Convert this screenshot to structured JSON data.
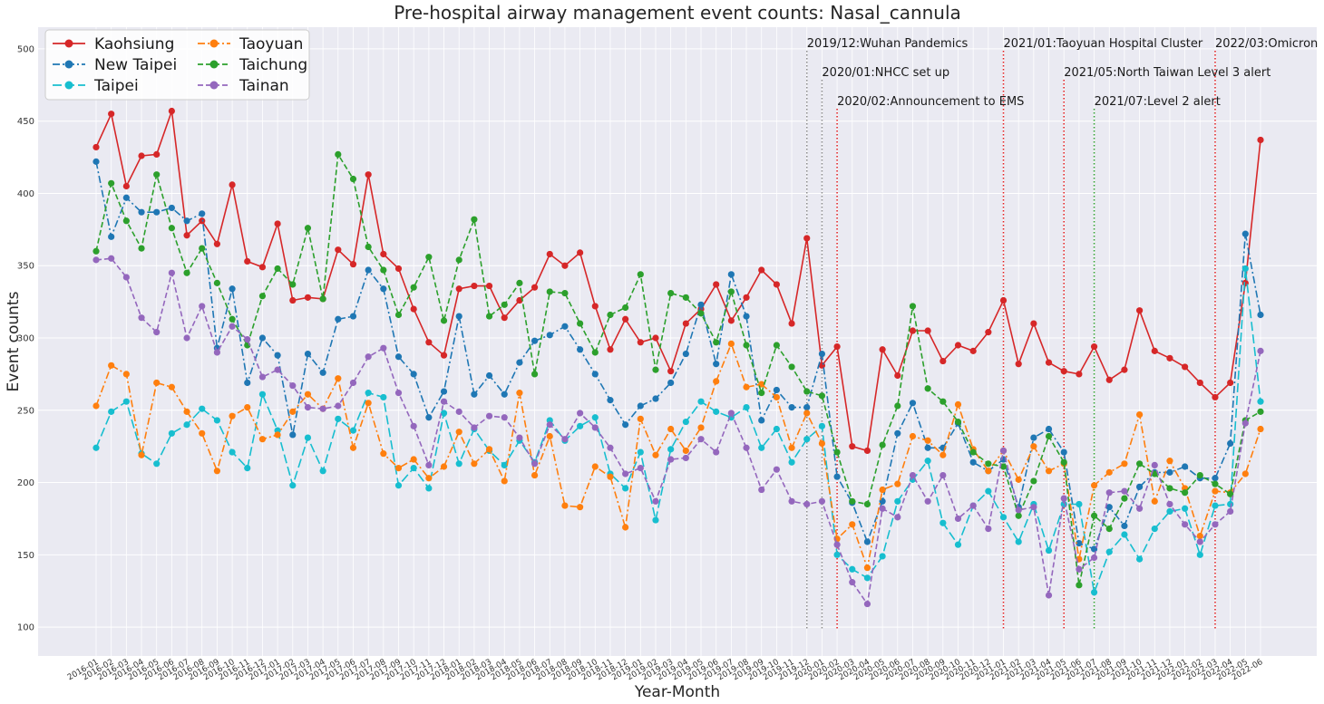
{
  "chart_data": {
    "type": "line",
    "title": "Pre-hospital airway management event counts: Nasal_cannula",
    "xlabel": "Year-Month",
    "ylabel": "Event counts",
    "ylim": [
      80,
      515
    ],
    "yticks": [
      100,
      150,
      200,
      250,
      300,
      350,
      400,
      450,
      500
    ],
    "grid": true,
    "legend_position": "top-left",
    "x": [
      "2016-01",
      "2016-02",
      "2016-03",
      "2016-04",
      "2016-05",
      "2016-06",
      "2016-07",
      "2016-08",
      "2016-09",
      "2016-10",
      "2016-11",
      "2016-12",
      "2017-01",
      "2017-02",
      "2017-03",
      "2017-04",
      "2017-05",
      "2017-06",
      "2017-07",
      "2017-08",
      "2017-09",
      "2017-10",
      "2017-11",
      "2017-12",
      "2018-01",
      "2018-02",
      "2018-03",
      "2018-04",
      "2018-05",
      "2018-06",
      "2018-07",
      "2018-08",
      "2018-09",
      "2018-10",
      "2018-11",
      "2018-12",
      "2019-01",
      "2019-02",
      "2019-03",
      "2019-04",
      "2019-05",
      "2019-06",
      "2019-07",
      "2019-08",
      "2019-09",
      "2019-10",
      "2019-11",
      "2019-12",
      "2020-01",
      "2020-02",
      "2020-03",
      "2020-04",
      "2020-05",
      "2020-06",
      "2020-07",
      "2020-08",
      "2020-09",
      "2020-10",
      "2020-11",
      "2020-12",
      "2021-01",
      "2021-02",
      "2021-03",
      "2021-04",
      "2021-05",
      "2021-06",
      "2021-07",
      "2021-08",
      "2021-09",
      "2021-10",
      "2021-11",
      "2021-12",
      "2022-01",
      "2022-02",
      "2022-03",
      "2022-04",
      "2022-05",
      "2022-06"
    ],
    "series": [
      {
        "name": "Kaohsiung",
        "color": "#d62728",
        "dash": "solid",
        "values": [
          432,
          455,
          405,
          426,
          427,
          457,
          371,
          381,
          365,
          406,
          353,
          349,
          379,
          326,
          328,
          327,
          361,
          351,
          413,
          358,
          348,
          320,
          297,
          288,
          334,
          336,
          336,
          314,
          326,
          335,
          358,
          350,
          359,
          322,
          292,
          313,
          297,
          300,
          277,
          310,
          320,
          337,
          312,
          328,
          347,
          337,
          310,
          369,
          281,
          294,
          225,
          222,
          292,
          274,
          305,
          305,
          284,
          295,
          291,
          304,
          326,
          282,
          310,
          283,
          277,
          275,
          294,
          271,
          278,
          319,
          291,
          286,
          280,
          269,
          259,
          269,
          338,
          437
        ]
      },
      {
        "name": "New Taipei",
        "color": "#1f77b4",
        "dash": "dashdot",
        "values": [
          422,
          370,
          397,
          387,
          387,
          390,
          381,
          386,
          293,
          334,
          269,
          300,
          288,
          233,
          289,
          276,
          313,
          315,
          347,
          334,
          287,
          275,
          245,
          263,
          315,
          261,
          274,
          261,
          283,
          298,
          302,
          308,
          292,
          275,
          257,
          240,
          253,
          258,
          269,
          289,
          323,
          282,
          344,
          315,
          243,
          264,
          252,
          252,
          289,
          204,
          186,
          159,
          187,
          234,
          255,
          224,
          224,
          241,
          214,
          208,
          216,
          183,
          231,
          237,
          221,
          158,
          154,
          183,
          170,
          197,
          207,
          207,
          211,
          203,
          203,
          227,
          372,
          316
        ]
      },
      {
        "name": "Taipei",
        "color": "#17becf",
        "dash": "longdash",
        "values": [
          224,
          249,
          256,
          220,
          213,
          234,
          240,
          251,
          243,
          221,
          210,
          261,
          236,
          198,
          231,
          208,
          244,
          236,
          262,
          259,
          198,
          210,
          196,
          248,
          213,
          237,
          222,
          212,
          229,
          214,
          243,
          229,
          239,
          245,
          206,
          196,
          221,
          174,
          223,
          242,
          256,
          249,
          245,
          252,
          224,
          237,
          214,
          230,
          239,
          150,
          140,
          134,
          149,
          187,
          202,
          215,
          172,
          157,
          184,
          194,
          176,
          159,
          185,
          153,
          185,
          185,
          124,
          152,
          164,
          147,
          168,
          180,
          182,
          150,
          184,
          185,
          348,
          256
        ]
      },
      {
        "name": "Taoyuan",
        "color": "#ff7f0e",
        "dash": "dashdot",
        "values": [
          253,
          281,
          275,
          219,
          269,
          266,
          249,
          234,
          208,
          246,
          252,
          230,
          233,
          249,
          261,
          251,
          272,
          224,
          255,
          220,
          210,
          216,
          203,
          211,
          235,
          213,
          223,
          201,
          262,
          205,
          232,
          184,
          183,
          211,
          204,
          169,
          244,
          219,
          237,
          222,
          238,
          270,
          296,
          266,
          268,
          259,
          224,
          248,
          227,
          161,
          171,
          141,
          195,
          199,
          232,
          229,
          219,
          254,
          223,
          208,
          222,
          202,
          225,
          208,
          213,
          147,
          198,
          207,
          213,
          247,
          187,
          215,
          196,
          163,
          194,
          193,
          206,
          237
        ]
      },
      {
        "name": "Taichung",
        "color": "#2ca02c",
        "dash": "dashed",
        "values": [
          360,
          407,
          381,
          362,
          413,
          376,
          345,
          362,
          338,
          313,
          295,
          329,
          348,
          337,
          376,
          327,
          427,
          410,
          363,
          347,
          316,
          335,
          356,
          312,
          354,
          382,
          315,
          323,
          338,
          275,
          332,
          331,
          310,
          290,
          316,
          321,
          344,
          278,
          331,
          328,
          317,
          297,
          332,
          295,
          262,
          295,
          280,
          263,
          260,
          221,
          187,
          185,
          226,
          253,
          322,
          265,
          256,
          242,
          221,
          213,
          211,
          177,
          201,
          232,
          214,
          129,
          177,
          168,
          189,
          213,
          206,
          196,
          193,
          205,
          199,
          192,
          243,
          249
        ]
      },
      {
        "name": "Tainan",
        "color": "#9467bd",
        "dash": "dashed",
        "values": [
          354,
          355,
          342,
          314,
          304,
          345,
          300,
          322,
          290,
          308,
          299,
          273,
          278,
          267,
          252,
          251,
          253,
          269,
          287,
          293,
          262,
          239,
          212,
          256,
          249,
          238,
          246,
          245,
          231,
          213,
          240,
          230,
          248,
          238,
          224,
          206,
          210,
          187,
          216,
          217,
          230,
          221,
          248,
          224,
          195,
          209,
          187,
          185,
          187,
          157,
          131,
          116,
          182,
          176,
          205,
          187,
          205,
          175,
          184,
          168,
          222,
          181,
          183,
          122,
          189,
          140,
          148,
          193,
          194,
          182,
          212,
          185,
          171,
          159,
          171,
          180,
          241,
          291
        ]
      }
    ],
    "annotations": [
      {
        "label": "2019/12:Wuhan Pandemics",
        "index": 47,
        "style": "dotted",
        "color": "#8c8c8c",
        "row": 0
      },
      {
        "label": "2020/01:NHCC set up",
        "index": 48,
        "style": "dotted",
        "color": "#8c8c8c",
        "row": 1
      },
      {
        "label": "2020/02:Announcement to EMS",
        "index": 49,
        "style": "dotted",
        "color": "#e31a1c",
        "row": 2
      },
      {
        "label": "2021/01:Taoyuan Hospital Cluster",
        "index": 60,
        "style": "dotted",
        "color": "#e31a1c",
        "row": 0
      },
      {
        "label": "2021/05:North Taiwan Level 3 alert",
        "index": 64,
        "style": "dotted",
        "color": "#e31a1c",
        "row": 1
      },
      {
        "label": "2021/07:Level 2 alert",
        "index": 66,
        "style": "dotted",
        "color": "#2ca02c",
        "row": 2
      },
      {
        "label": "2022/03:Omicron",
        "index": 74,
        "style": "dotted",
        "color": "#e31a1c",
        "row": 0
      }
    ]
  }
}
